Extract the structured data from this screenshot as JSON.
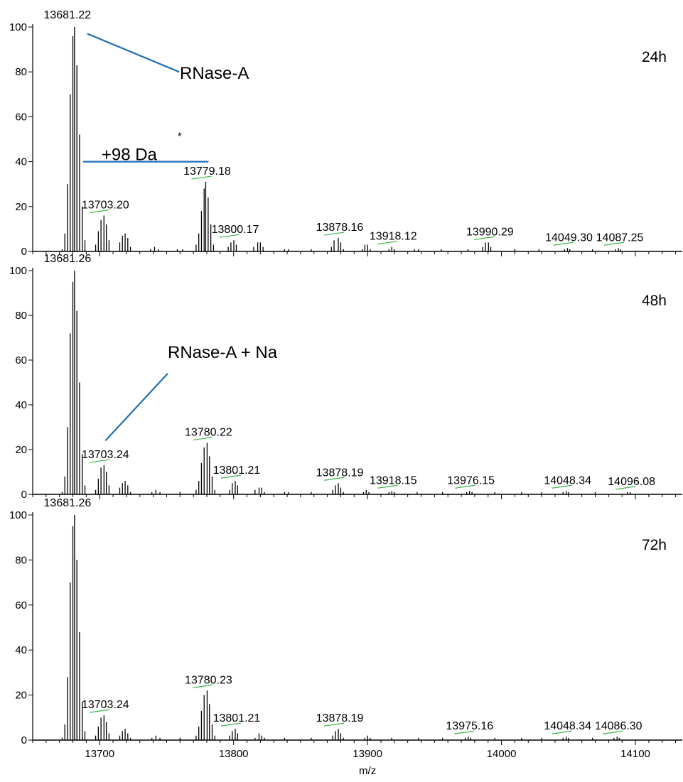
{
  "chart_data": [
    {
      "type": "bar",
      "panel_label": "24h",
      "ylim": [
        0,
        100
      ],
      "yticks": [
        "0",
        "20",
        "40",
        "60",
        "80",
        "100"
      ],
      "peaks": [
        {
          "x": 13672,
          "y": 1
        },
        {
          "x": 13674,
          "y": 8
        },
        {
          "x": 13676,
          "y": 30
        },
        {
          "x": 13678,
          "y": 70
        },
        {
          "x": 13680,
          "y": 96
        },
        {
          "x": 13681.22,
          "y": 100
        },
        {
          "x": 13683,
          "y": 83
        },
        {
          "x": 13685,
          "y": 52
        },
        {
          "x": 13687,
          "y": 20
        },
        {
          "x": 13689,
          "y": 5
        },
        {
          "x": 13697,
          "y": 3
        },
        {
          "x": 13699,
          "y": 9
        },
        {
          "x": 13701,
          "y": 14
        },
        {
          "x": 13703.2,
          "y": 16
        },
        {
          "x": 13705,
          "y": 12
        },
        {
          "x": 13707,
          "y": 5
        },
        {
          "x": 13715,
          "y": 4
        },
        {
          "x": 13717,
          "y": 7
        },
        {
          "x": 13719,
          "y": 8
        },
        {
          "x": 13721,
          "y": 6
        },
        {
          "x": 13723,
          "y": 2
        },
        {
          "x": 13738,
          "y": 1
        },
        {
          "x": 13741,
          "y": 2
        },
        {
          "x": 13744,
          "y": 1
        },
        {
          "x": 13758,
          "y": 1
        },
        {
          "x": 13762,
          "y": 1
        },
        {
          "x": 13772,
          "y": 3
        },
        {
          "x": 13774,
          "y": 8
        },
        {
          "x": 13776,
          "y": 18
        },
        {
          "x": 13778,
          "y": 28
        },
        {
          "x": 13779.18,
          "y": 31
        },
        {
          "x": 13781,
          "y": 24
        },
        {
          "x": 13783,
          "y": 12
        },
        {
          "x": 13785,
          "y": 3
        },
        {
          "x": 13796,
          "y": 2
        },
        {
          "x": 13798,
          "y": 4
        },
        {
          "x": 13800.17,
          "y": 5
        },
        {
          "x": 13802,
          "y": 3
        },
        {
          "x": 13815,
          "y": 2
        },
        {
          "x": 13818,
          "y": 4
        },
        {
          "x": 13820,
          "y": 4
        },
        {
          "x": 13822,
          "y": 2
        },
        {
          "x": 13838,
          "y": 1
        },
        {
          "x": 13841,
          "y": 1
        },
        {
          "x": 13858,
          "y": 1
        },
        {
          "x": 13873,
          "y": 2
        },
        {
          "x": 13875,
          "y": 5
        },
        {
          "x": 13878.16,
          "y": 6
        },
        {
          "x": 13880,
          "y": 4
        },
        {
          "x": 13882,
          "y": 1
        },
        {
          "x": 13896,
          "y": 1
        },
        {
          "x": 13898,
          "y": 3
        },
        {
          "x": 13900,
          "y": 3
        },
        {
          "x": 13902,
          "y": 1
        },
        {
          "x": 13916,
          "y": 1
        },
        {
          "x": 13918.12,
          "y": 2
        },
        {
          "x": 13920,
          "y": 1
        },
        {
          "x": 13935,
          "y": 1
        },
        {
          "x": 13938,
          "y": 1
        },
        {
          "x": 13955,
          "y": 1
        },
        {
          "x": 13975,
          "y": 1
        },
        {
          "x": 13986,
          "y": 2
        },
        {
          "x": 13988,
          "y": 4
        },
        {
          "x": 13990.29,
          "y": 4
        },
        {
          "x": 13992,
          "y": 2
        },
        {
          "x": 14010,
          "y": 1
        },
        {
          "x": 14028,
          "y": 1
        },
        {
          "x": 14047,
          "y": 1
        },
        {
          "x": 14049.3,
          "y": 1.5
        },
        {
          "x": 14051,
          "y": 1
        },
        {
          "x": 14068,
          "y": 1
        },
        {
          "x": 14085,
          "y": 1
        },
        {
          "x": 14087.25,
          "y": 1.5
        },
        {
          "x": 14089,
          "y": 1
        }
      ],
      "labels": [
        {
          "text": "13681.22",
          "x": 13681.22,
          "y": 100
        },
        {
          "text": "13703.20",
          "x": 13703.2,
          "y": 16
        },
        {
          "text": "13779.18",
          "x": 13779.18,
          "y": 31
        },
        {
          "text": "13800.17",
          "x": 13800.17,
          "y": 5
        },
        {
          "text": "13878.16",
          "x": 13878.16,
          "y": 6
        },
        {
          "text": "13918.12",
          "x": 13918.12,
          "y": 2
        },
        {
          "text": "13990.29",
          "x": 13990.29,
          "y": 4
        },
        {
          "text": "14049.30",
          "x": 14049.3,
          "y": 1.5
        },
        {
          "text": "14087.25",
          "x": 14087.25,
          "y": 1.5
        }
      ],
      "annotations": [
        {
          "text": "RNase-A",
          "target_x": 13681.22
        },
        {
          "text": "+98 Da",
          "superscript": "*",
          "from_x": 13681.22,
          "to_x": 13779.18
        }
      ]
    },
    {
      "type": "bar",
      "panel_label": "48h",
      "ylim": [
        0,
        100
      ],
      "yticks": [
        "0",
        "20",
        "40",
        "60",
        "80",
        "100"
      ],
      "peaks": [
        {
          "x": 13672,
          "y": 1
        },
        {
          "x": 13674,
          "y": 8
        },
        {
          "x": 13676,
          "y": 30
        },
        {
          "x": 13678,
          "y": 72
        },
        {
          "x": 13680,
          "y": 95
        },
        {
          "x": 13681.26,
          "y": 100
        },
        {
          "x": 13683,
          "y": 82
        },
        {
          "x": 13685,
          "y": 50
        },
        {
          "x": 13687,
          "y": 18
        },
        {
          "x": 13689,
          "y": 4
        },
        {
          "x": 13697,
          "y": 2
        },
        {
          "x": 13699,
          "y": 7
        },
        {
          "x": 13701,
          "y": 12
        },
        {
          "x": 13703.24,
          "y": 13
        },
        {
          "x": 13705,
          "y": 10
        },
        {
          "x": 13707,
          "y": 4
        },
        {
          "x": 13715,
          "y": 3
        },
        {
          "x": 13717,
          "y": 5
        },
        {
          "x": 13719,
          "y": 6
        },
        {
          "x": 13721,
          "y": 4
        },
        {
          "x": 13723,
          "y": 1
        },
        {
          "x": 13739,
          "y": 1
        },
        {
          "x": 13742,
          "y": 2
        },
        {
          "x": 13745,
          "y": 1
        },
        {
          "x": 13760,
          "y": 1
        },
        {
          "x": 13772,
          "y": 2
        },
        {
          "x": 13774,
          "y": 6
        },
        {
          "x": 13776,
          "y": 14
        },
        {
          "x": 13778,
          "y": 21
        },
        {
          "x": 13780.22,
          "y": 23
        },
        {
          "x": 13782,
          "y": 17
        },
        {
          "x": 13784,
          "y": 8
        },
        {
          "x": 13786,
          "y": 2
        },
        {
          "x": 13797,
          "y": 2
        },
        {
          "x": 13799,
          "y": 5
        },
        {
          "x": 13801.21,
          "y": 6
        },
        {
          "x": 13803,
          "y": 4
        },
        {
          "x": 13816,
          "y": 2
        },
        {
          "x": 13819,
          "y": 3
        },
        {
          "x": 13821,
          "y": 3
        },
        {
          "x": 13823,
          "y": 1
        },
        {
          "x": 13838,
          "y": 1
        },
        {
          "x": 13841,
          "y": 1
        },
        {
          "x": 13858,
          "y": 1
        },
        {
          "x": 13874,
          "y": 2
        },
        {
          "x": 13876,
          "y": 4
        },
        {
          "x": 13878.19,
          "y": 5
        },
        {
          "x": 13880,
          "y": 3
        },
        {
          "x": 13882,
          "y": 1
        },
        {
          "x": 13897,
          "y": 1
        },
        {
          "x": 13899,
          "y": 2
        },
        {
          "x": 13901,
          "y": 1
        },
        {
          "x": 13916,
          "y": 1
        },
        {
          "x": 13918.15,
          "y": 1.5
        },
        {
          "x": 13920,
          "y": 1
        },
        {
          "x": 13937,
          "y": 1
        },
        {
          "x": 13956,
          "y": 1
        },
        {
          "x": 13974,
          "y": 1
        },
        {
          "x": 13976.15,
          "y": 1.5
        },
        {
          "x": 13978,
          "y": 1
        },
        {
          "x": 13995,
          "y": 1
        },
        {
          "x": 14015,
          "y": 1
        },
        {
          "x": 14030,
          "y": 1
        },
        {
          "x": 14046,
          "y": 1
        },
        {
          "x": 14048.34,
          "y": 1.5
        },
        {
          "x": 14050,
          "y": 1
        },
        {
          "x": 14070,
          "y": 1
        },
        {
          "x": 14094,
          "y": 1
        },
        {
          "x": 14096.08,
          "y": 1
        }
      ],
      "labels": [
        {
          "text": "13681.26",
          "x": 13681.26,
          "y": 100
        },
        {
          "text": "13703.24",
          "x": 13703.24,
          "y": 13
        },
        {
          "text": "13780.22",
          "x": 13780.22,
          "y": 23
        },
        {
          "text": "13801.21",
          "x": 13801.21,
          "y": 6
        },
        {
          "text": "13878.19",
          "x": 13878.19,
          "y": 5
        },
        {
          "text": "13918.15",
          "x": 13918.15,
          "y": 1.5
        },
        {
          "text": "13976.15",
          "x": 13976.15,
          "y": 1.5
        },
        {
          "text": "14048.34",
          "x": 14048.34,
          "y": 1.5
        },
        {
          "text": "14096.08",
          "x": 14096.08,
          "y": 1
        }
      ],
      "annotations": [
        {
          "text": "RNase-A + Na",
          "target_x": 13703.24
        }
      ]
    },
    {
      "type": "bar",
      "panel_label": "72h",
      "ylim": [
        0,
        100
      ],
      "yticks": [
        "0",
        "20",
        "40",
        "60",
        "80",
        "100"
      ],
      "xlabel": "m/z",
      "xlim": [
        13650,
        14135
      ],
      "xticks": [
        13700,
        13800,
        13900,
        14000,
        14100
      ],
      "peaks": [
        {
          "x": 13672,
          "y": 1
        },
        {
          "x": 13674,
          "y": 7
        },
        {
          "x": 13676,
          "y": 28
        },
        {
          "x": 13678,
          "y": 70
        },
        {
          "x": 13680,
          "y": 95
        },
        {
          "x": 13681.26,
          "y": 100
        },
        {
          "x": 13683,
          "y": 80
        },
        {
          "x": 13685,
          "y": 48
        },
        {
          "x": 13687,
          "y": 17
        },
        {
          "x": 13689,
          "y": 4
        },
        {
          "x": 13697,
          "y": 2
        },
        {
          "x": 13699,
          "y": 6
        },
        {
          "x": 13701,
          "y": 10
        },
        {
          "x": 13703.24,
          "y": 11
        },
        {
          "x": 13705,
          "y": 8
        },
        {
          "x": 13707,
          "y": 3
        },
        {
          "x": 13715,
          "y": 2
        },
        {
          "x": 13717,
          "y": 4
        },
        {
          "x": 13719,
          "y": 5
        },
        {
          "x": 13721,
          "y": 3
        },
        {
          "x": 13723,
          "y": 1
        },
        {
          "x": 13739,
          "y": 1
        },
        {
          "x": 13742,
          "y": 2
        },
        {
          "x": 13745,
          "y": 1
        },
        {
          "x": 13760,
          "y": 1
        },
        {
          "x": 13772,
          "y": 2
        },
        {
          "x": 13774,
          "y": 6
        },
        {
          "x": 13776,
          "y": 13
        },
        {
          "x": 13778,
          "y": 20
        },
        {
          "x": 13780.23,
          "y": 22
        },
        {
          "x": 13782,
          "y": 16
        },
        {
          "x": 13784,
          "y": 7
        },
        {
          "x": 13786,
          "y": 2
        },
        {
          "x": 13797,
          "y": 2
        },
        {
          "x": 13799,
          "y": 4
        },
        {
          "x": 13801.21,
          "y": 5
        },
        {
          "x": 13803,
          "y": 3
        },
        {
          "x": 13816,
          "y": 1
        },
        {
          "x": 13819,
          "y": 3
        },
        {
          "x": 13821,
          "y": 2
        },
        {
          "x": 13823,
          "y": 1
        },
        {
          "x": 13838,
          "y": 1
        },
        {
          "x": 13858,
          "y": 1
        },
        {
          "x": 13874,
          "y": 2
        },
        {
          "x": 13876,
          "y": 4
        },
        {
          "x": 13878.19,
          "y": 5
        },
        {
          "x": 13880,
          "y": 3
        },
        {
          "x": 13882,
          "y": 1
        },
        {
          "x": 13898,
          "y": 1
        },
        {
          "x": 13900,
          "y": 2
        },
        {
          "x": 13902,
          "y": 1
        },
        {
          "x": 13918,
          "y": 1
        },
        {
          "x": 13938,
          "y": 1
        },
        {
          "x": 13956,
          "y": 1
        },
        {
          "x": 13973,
          "y": 1
        },
        {
          "x": 13975.16,
          "y": 1.5
        },
        {
          "x": 13977,
          "y": 1
        },
        {
          "x": 13995,
          "y": 1
        },
        {
          "x": 14015,
          "y": 1
        },
        {
          "x": 14030,
          "y": 1
        },
        {
          "x": 14046,
          "y": 1
        },
        {
          "x": 14048.34,
          "y": 1.5
        },
        {
          "x": 14050,
          "y": 1
        },
        {
          "x": 14068,
          "y": 1
        },
        {
          "x": 14084,
          "y": 1
        },
        {
          "x": 14086.3,
          "y": 1.5
        },
        {
          "x": 14088,
          "y": 1
        }
      ],
      "labels": [
        {
          "text": "13681.26",
          "x": 13681.26,
          "y": 100
        },
        {
          "text": "13703.24",
          "x": 13703.24,
          "y": 11
        },
        {
          "text": "13780.23",
          "x": 13780.23,
          "y": 22
        },
        {
          "text": "13801.21",
          "x": 13801.21,
          "y": 5
        },
        {
          "text": "13878.19",
          "x": 13878.19,
          "y": 5
        },
        {
          "text": "13975.16",
          "x": 13975.16,
          "y": 1.5
        },
        {
          "text": "14048.34",
          "x": 14048.34,
          "y": 1.5
        },
        {
          "text": "14086.30",
          "x": 14086.3,
          "y": 1.5
        }
      ],
      "annotations": []
    }
  ],
  "colors": {
    "peak": "#000000",
    "annotation_line": "#1f6fb5",
    "label_marker": "#3cb44b",
    "axis": "#000000"
  }
}
